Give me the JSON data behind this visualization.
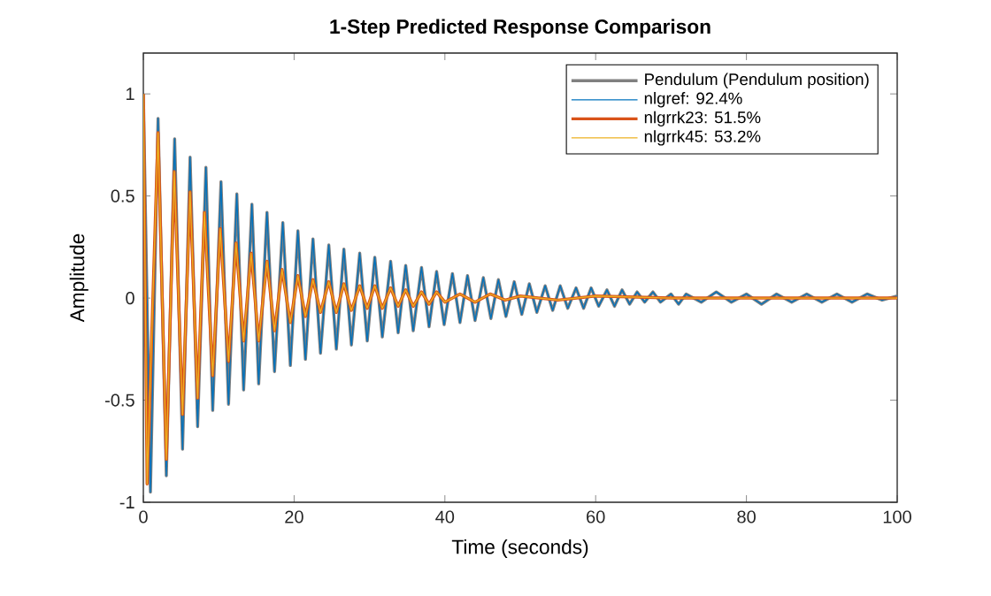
{
  "chart_data": {
    "type": "line",
    "title": "1-Step Predicted Response Comparison",
    "xlabel": "Time (seconds)",
    "ylabel": "Amplitude",
    "xlim": [
      0,
      100
    ],
    "ylim": [
      -1,
      1.2
    ],
    "xticks": [
      0,
      20,
      40,
      60,
      80,
      100
    ],
    "yticks": [
      -1,
      -0.5,
      0,
      0.5,
      1
    ],
    "legend": "top right",
    "series": [
      {
        "name": "Pendulum (Pendulum position)",
        "color": "#808080",
        "x": [
          0,
          0.94,
          1.95,
          3.05,
          4.15,
          5.2,
          6.2,
          7.2,
          8.3,
          9.2,
          10.3,
          11.3,
          12.4,
          13.3,
          14.4,
          15.3,
          16.4,
          17.4,
          18.5,
          19.5,
          20.5,
          21.5,
          22.5,
          23.5,
          24.6,
          25.6,
          26.6,
          27.6,
          28.7,
          29.7,
          30.7,
          31.7,
          32.8,
          33.8,
          34.8,
          35.8,
          36.9,
          37.9,
          38.9,
          39.9,
          41.0,
          42.0,
          43.0,
          44.0,
          45.1,
          46.1,
          47.1,
          48.1,
          49.2,
          50.2,
          51.2,
          52.2,
          53.3,
          54.3,
          55.3,
          56.3,
          57.4,
          58.4,
          59.4,
          60.4,
          61.5,
          62.5,
          63.5,
          64.5,
          65.5,
          66.5,
          67.6,
          68.6,
          70,
          71,
          72,
          74,
          76,
          78,
          80,
          82,
          84,
          86,
          88,
          90,
          92,
          94,
          96,
          98,
          100
        ],
        "values": [
          1.0,
          -0.95,
          0.88,
          -0.87,
          0.78,
          -0.74,
          0.69,
          -0.63,
          0.64,
          -0.55,
          0.57,
          -0.52,
          0.51,
          -0.45,
          0.46,
          -0.42,
          0.42,
          -0.36,
          0.37,
          -0.33,
          0.33,
          -0.3,
          0.29,
          -0.27,
          0.26,
          -0.25,
          0.24,
          -0.23,
          0.22,
          -0.21,
          0.2,
          -0.19,
          0.18,
          -0.17,
          0.16,
          -0.16,
          0.15,
          -0.14,
          0.13,
          -0.13,
          0.12,
          -0.12,
          0.11,
          -0.11,
          0.1,
          -0.1,
          0.09,
          -0.09,
          0.08,
          -0.08,
          0.07,
          -0.07,
          0.06,
          -0.06,
          0.06,
          -0.05,
          0.05,
          -0.05,
          0.05,
          -0.04,
          0.04,
          -0.04,
          0.04,
          -0.03,
          0.03,
          -0.02,
          0.03,
          -0.02,
          0.02,
          -0.03,
          0.02,
          -0.02,
          0.03,
          -0.02,
          0.02,
          -0.03,
          0.02,
          -0.02,
          0.02,
          -0.02,
          0.02,
          -0.02,
          0.02,
          -0.01,
          0.01
        ]
      },
      {
        "name": "nlgref: 92.4%",
        "color": "#0072bd",
        "x": [
          0,
          0.94,
          1.95,
          3.05,
          4.15,
          5.2,
          6.2,
          7.2,
          8.3,
          9.2,
          10.3,
          11.3,
          12.4,
          13.3,
          14.4,
          15.3,
          16.4,
          17.4,
          18.5,
          19.5,
          20.5,
          21.5,
          22.5,
          23.5,
          24.6,
          25.6,
          26.6,
          27.6,
          28.7,
          29.7,
          30.7,
          31.7,
          32.8,
          33.8,
          34.8,
          35.8,
          36.9,
          37.9,
          38.9,
          39.9,
          41.0,
          42.0,
          43.0,
          44.0,
          45.1,
          46.1,
          47.1,
          48.1,
          49.2,
          50.2,
          51.2,
          52.2,
          53.3,
          54.3,
          55.3,
          56.3,
          57.4,
          58.4,
          59.4,
          60.4,
          61.5,
          62.5,
          63.5,
          64.5,
          65.5,
          66.5,
          67.6,
          68.6,
          70,
          71,
          72,
          74,
          76,
          78,
          80,
          82,
          84,
          86,
          88,
          90,
          92,
          94,
          96,
          98,
          100
        ],
        "values": [
          1.0,
          -0.95,
          0.88,
          -0.87,
          0.78,
          -0.74,
          0.69,
          -0.63,
          0.64,
          -0.55,
          0.57,
          -0.52,
          0.51,
          -0.45,
          0.46,
          -0.42,
          0.42,
          -0.36,
          0.37,
          -0.33,
          0.33,
          -0.3,
          0.29,
          -0.27,
          0.26,
          -0.25,
          0.24,
          -0.23,
          0.22,
          -0.21,
          0.2,
          -0.19,
          0.18,
          -0.17,
          0.16,
          -0.16,
          0.15,
          -0.14,
          0.13,
          -0.13,
          0.12,
          -0.12,
          0.11,
          -0.11,
          0.1,
          -0.1,
          0.09,
          -0.09,
          0.08,
          -0.08,
          0.07,
          -0.07,
          0.06,
          -0.06,
          0.06,
          -0.05,
          0.05,
          -0.05,
          0.05,
          -0.04,
          0.04,
          -0.04,
          0.04,
          -0.03,
          0.03,
          -0.02,
          0.03,
          -0.02,
          0.02,
          -0.03,
          0.02,
          -0.02,
          0.03,
          -0.02,
          0.02,
          -0.03,
          0.02,
          -0.02,
          0.02,
          -0.02,
          0.02,
          -0.02,
          0.02,
          -0.01,
          0.01
        ]
      },
      {
        "name": "nlgrrk23: 51.5%",
        "color": "#d95319",
        "x": [
          0,
          0.5,
          1.95,
          3.05,
          4.1,
          5.2,
          6.2,
          7.2,
          8.1,
          9.2,
          10.2,
          11.3,
          12.3,
          13.3,
          14.3,
          15.3,
          16.4,
          17.4,
          18.4,
          19.5,
          20.5,
          21.5,
          22.5,
          23.5,
          24.6,
          25.6,
          26.6,
          27.6,
          28.7,
          29.7,
          30.7,
          31.7,
          32.8,
          33.8,
          34.8,
          35.8,
          36.9,
          37.9,
          38.9,
          40,
          42,
          44,
          46,
          48,
          50,
          55,
          60,
          70,
          80,
          90,
          100
        ],
        "values": [
          1.0,
          -0.91,
          0.81,
          -0.79,
          0.62,
          -0.57,
          0.52,
          -0.49,
          0.42,
          -0.38,
          0.34,
          -0.31,
          0.27,
          -0.21,
          0.22,
          -0.21,
          0.18,
          -0.16,
          0.14,
          -0.12,
          0.11,
          -0.09,
          0.09,
          -0.07,
          0.08,
          -0.07,
          0.07,
          -0.06,
          0.06,
          -0.05,
          0.06,
          -0.05,
          0.05,
          -0.04,
          0.04,
          -0.04,
          0.03,
          -0.03,
          0.03,
          -0.02,
          0.02,
          -0.02,
          0.02,
          -0.01,
          0.01,
          -0.01,
          0.01,
          0,
          0,
          0,
          0
        ]
      },
      {
        "name": "nlgrrk45: 53.2%",
        "color": "#edb120",
        "x": [
          0,
          0.5,
          1.95,
          3.05,
          4.1,
          5.2,
          6.2,
          7.2,
          8.1,
          9.2,
          10.2,
          11.3,
          12.3,
          13.3,
          14.3,
          15.3,
          16.4,
          17.4,
          18.4,
          19.5,
          20.5,
          21.5,
          22.5,
          23.5,
          24.6,
          25.6,
          26.6,
          27.6,
          28.7,
          29.7,
          30.7,
          31.7,
          32.8,
          33.8,
          34.8,
          35.8,
          36.9,
          37.9,
          38.9,
          40,
          42,
          44,
          46,
          48,
          50,
          55,
          60,
          70,
          80,
          90,
          100
        ],
        "values": [
          1.0,
          -0.91,
          0.81,
          -0.79,
          0.62,
          -0.57,
          0.52,
          -0.49,
          0.42,
          -0.38,
          0.34,
          -0.31,
          0.27,
          -0.21,
          0.22,
          -0.21,
          0.18,
          -0.16,
          0.14,
          -0.12,
          0.11,
          -0.09,
          0.09,
          -0.07,
          0.08,
          -0.07,
          0.07,
          -0.06,
          0.06,
          -0.05,
          0.06,
          -0.05,
          0.05,
          -0.04,
          0.04,
          -0.04,
          0.03,
          -0.03,
          0.03,
          -0.02,
          0.02,
          -0.02,
          0.02,
          -0.01,
          0.01,
          -0.01,
          0.01,
          0,
          0,
          0,
          0
        ]
      }
    ]
  }
}
